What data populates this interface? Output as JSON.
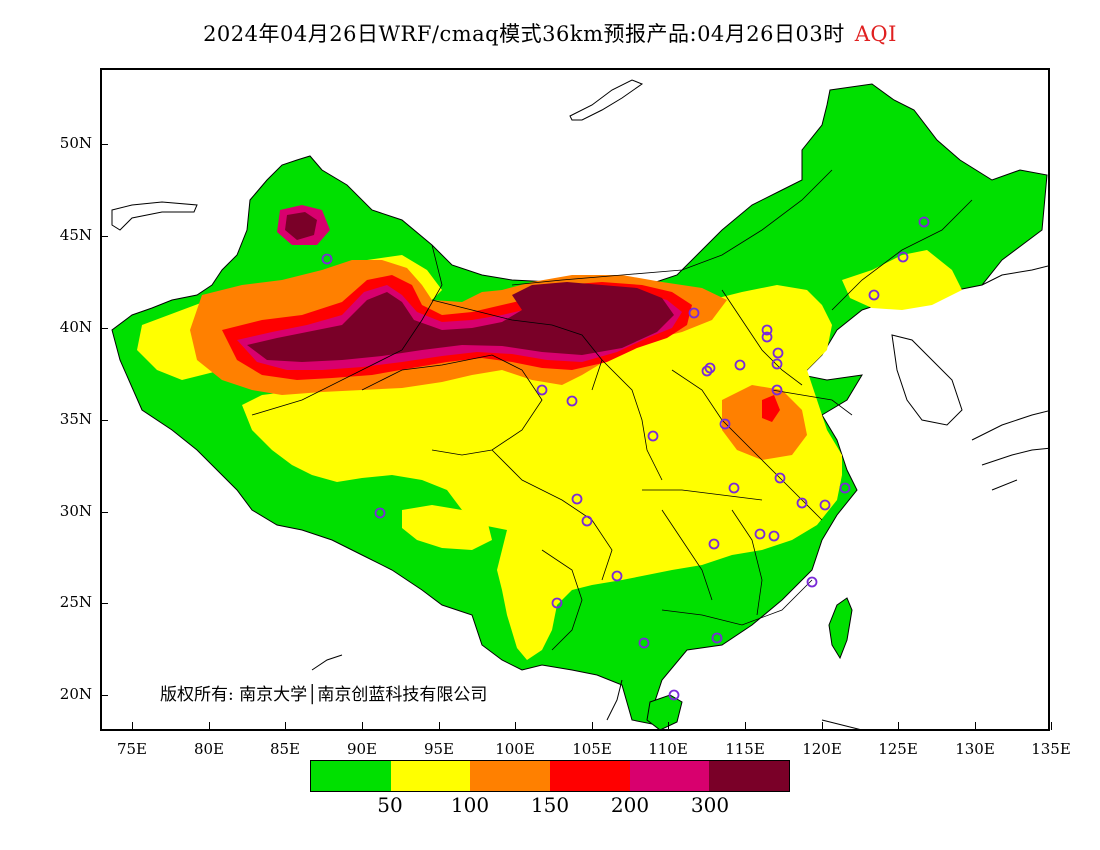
{
  "header": {
    "title": "2024年04月26日WRF/cmaq模式36km预报产品:04月26日03时",
    "pollutant": "AQI"
  },
  "map": {
    "lon_range": [
      73,
      135
    ],
    "lat_range": [
      18,
      54
    ],
    "x_ticks": [
      "75E",
      "80E",
      "85E",
      "90E",
      "95E",
      "100E",
      "105E",
      "110E",
      "115E",
      "120E",
      "125E",
      "130E",
      "135E"
    ],
    "y_ticks": [
      "20N",
      "25N",
      "30N",
      "35N",
      "40N",
      "45N",
      "50N"
    ],
    "copyright": "版权所有: 南京大学│南京创蓝科技有限公司",
    "background_color": "#ffffff"
  },
  "legend": {
    "colors": [
      "#00e000",
      "#ffff00",
      "#ff8000",
      "#ff0000",
      "#d8006e",
      "#7a0028"
    ],
    "labels": [
      "50",
      "100",
      "150",
      "200",
      "300"
    ]
  },
  "stations": {
    "marker_color": "#7a2ad8"
  }
}
